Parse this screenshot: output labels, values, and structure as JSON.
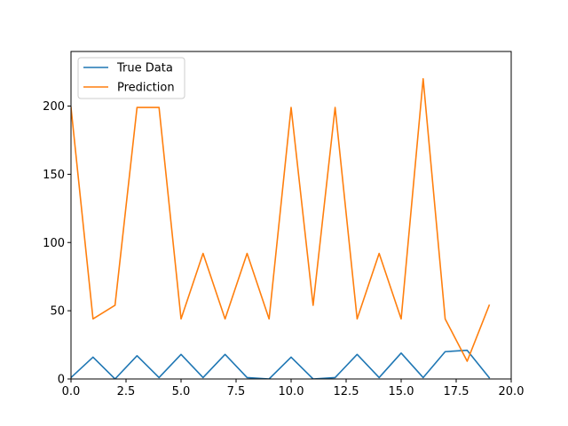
{
  "chart_data": {
    "type": "line",
    "title": "",
    "xlabel": "",
    "ylabel": "",
    "xlim": [
      0,
      20
    ],
    "ylim": [
      0,
      240
    ],
    "xticks": [
      0,
      2.5,
      5,
      7.5,
      10,
      12.5,
      15,
      17.5,
      20
    ],
    "xtick_labels": [
      "0.0",
      "2.5",
      "5.0",
      "7.5",
      "10.0",
      "12.5",
      "15.0",
      "17.5",
      "20.0"
    ],
    "yticks": [
      0,
      50,
      100,
      150,
      200
    ],
    "ytick_labels": [
      "0",
      "50",
      "100",
      "150",
      "200"
    ],
    "grid": false,
    "legend_position": "upper-left",
    "x": [
      0,
      1,
      2,
      3,
      4,
      5,
      6,
      7,
      8,
      9,
      10,
      11,
      12,
      13,
      14,
      15,
      16,
      17,
      18,
      19
    ],
    "series": [
      {
        "name": "True Data",
        "color": "#1f77b4",
        "values": [
          1,
          16,
          0,
          17,
          1,
          18,
          1,
          18,
          1,
          0,
          16,
          0,
          1,
          18,
          1,
          19,
          1,
          20,
          21,
          1
        ]
      },
      {
        "name": "Prediction",
        "color": "#ff7f0e",
        "values": [
          199,
          44,
          54,
          199,
          199,
          44,
          92,
          44,
          92,
          44,
          199,
          54,
          199,
          44,
          92,
          44,
          220,
          44,
          13,
          54
        ]
      }
    ]
  }
}
